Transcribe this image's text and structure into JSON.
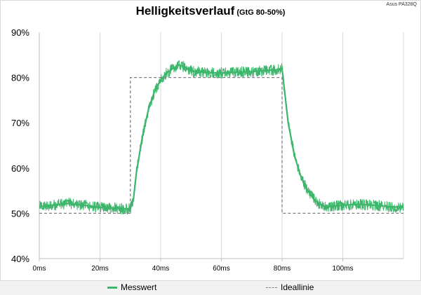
{
  "header": {
    "title": "Helligkeitsverlauf",
    "subtitle": "(GtG 80-50%)",
    "device": "Asus PA328Q"
  },
  "colors": {
    "measured": "#3cb66b",
    "ideal": "#7f7f7f",
    "grid": "#d9d9d9"
  },
  "chart_data": {
    "type": "line",
    "title": "Helligkeitsverlauf",
    "subtitle": "(GtG 80-50%)",
    "xlim": [
      0,
      120
    ],
    "ylim": [
      40,
      90
    ],
    "x_ticks": [
      0,
      20,
      40,
      60,
      80,
      100
    ],
    "x_tick_labels": [
      "0ms",
      "20ms",
      "40ms",
      "60ms",
      "80ms",
      "100ms"
    ],
    "y_ticks": [
      40,
      50,
      60,
      70,
      80,
      90
    ],
    "y_tick_labels": [
      "40%",
      "50%",
      "60%",
      "70%",
      "80%",
      "90%"
    ],
    "grid": "vertical",
    "legend_position": "bottom",
    "series": [
      {
        "name": "Messwert",
        "style": "solid",
        "noise_band": 1.5,
        "x": [
          0,
          10,
          20,
          28,
          30,
          31,
          32,
          34,
          36,
          38,
          40,
          42,
          44,
          46,
          48,
          50,
          54,
          58,
          62,
          66,
          70,
          74,
          78,
          80,
          81,
          82,
          84,
          86,
          88,
          90,
          92,
          94,
          96,
          100,
          105,
          110,
          115,
          120
        ],
        "y": [
          51.5,
          52.2,
          51.3,
          51.0,
          51.0,
          53,
          59,
          67,
          73,
          77,
          79.5,
          81,
          82,
          82.8,
          82.3,
          81.4,
          81.2,
          81.0,
          81.0,
          81.2,
          81.3,
          81.5,
          81.7,
          82,
          76,
          70,
          63,
          58.5,
          55.5,
          53.5,
          52.2,
          51.6,
          51.5,
          51.8,
          52.0,
          51.8,
          51.5,
          51.3
        ]
      },
      {
        "name": "Ideallinie",
        "style": "dashed",
        "x": [
          0,
          30,
          30,
          80,
          80,
          120
        ],
        "y": [
          50,
          50,
          80,
          80,
          50,
          50
        ]
      }
    ]
  },
  "legend": {
    "measured_label": "Messwert",
    "ideal_label": "Ideallinie"
  }
}
